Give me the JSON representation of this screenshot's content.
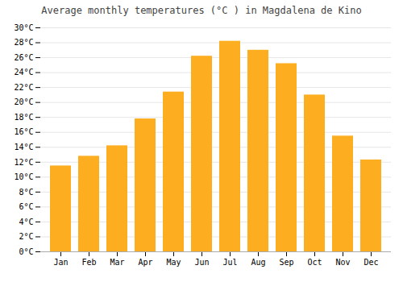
{
  "chart_data": {
    "type": "bar",
    "title": "Average monthly temperatures (°C ) in Magdalena de Kino",
    "categories": [
      "Jan",
      "Feb",
      "Mar",
      "Apr",
      "May",
      "Jun",
      "Jul",
      "Aug",
      "Sep",
      "Oct",
      "Nov",
      "Dec"
    ],
    "values": [
      11.5,
      12.8,
      14.2,
      17.8,
      21.4,
      26.2,
      28.2,
      27.0,
      25.2,
      21.0,
      15.5,
      12.3
    ],
    "color": "#FCAD20",
    "ylim": [
      0,
      30
    ],
    "yticks": [
      {
        "value": 0,
        "label": "0°C"
      },
      {
        "value": 2,
        "label": "2°C"
      },
      {
        "value": 4,
        "label": "4°C"
      },
      {
        "value": 6,
        "label": "6°C"
      },
      {
        "value": 8,
        "label": "8°C"
      },
      {
        "value": 10,
        "label": "10°C"
      },
      {
        "value": 12,
        "label": "12°C"
      },
      {
        "value": 14,
        "label": "14°C"
      },
      {
        "value": 16,
        "label": "16°C"
      },
      {
        "value": 18,
        "label": "18°C"
      },
      {
        "value": 20,
        "label": "20°C"
      },
      {
        "value": 22,
        "label": "22°C"
      },
      {
        "value": 24,
        "label": "24°C"
      },
      {
        "value": 26,
        "label": "26°C"
      },
      {
        "value": 28,
        "label": "28°C"
      },
      {
        "value": 30,
        "label": "30°C"
      }
    ],
    "grid": true
  }
}
